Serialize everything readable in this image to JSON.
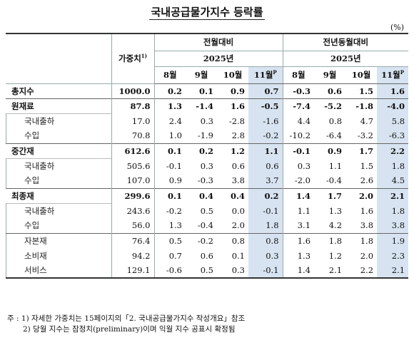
{
  "title": "국내공급물가지수 등락률",
  "unit": "(%)",
  "header": {
    "weight_label": "가중치",
    "weight_sup": "1)",
    "mom_label": "전월대비",
    "yoy_label": "전년동월대비",
    "year_label": "2025년",
    "months": [
      "8월",
      "9월",
      "10월",
      "11월"
    ],
    "prelim_sup": "P"
  },
  "rows": [
    {
      "name": "총지수",
      "weight": "1000.0",
      "mom": [
        "0.2",
        "0.1",
        "0.9",
        "0.7"
      ],
      "yoy": [
        "-0.3",
        "0.6",
        "1.5",
        "1.6"
      ]
    },
    {
      "name": "원재료",
      "weight": "87.8",
      "mom": [
        "1.3",
        "-1.4",
        "1.6",
        "-0.5"
      ],
      "yoy": [
        "-7.4",
        "-5.2",
        "-1.8",
        "-4.0"
      ]
    },
    {
      "name": "국내출하",
      "weight": "17.0",
      "mom": [
        "2.4",
        "0.3",
        "-2.8",
        "-1.6"
      ],
      "yoy": [
        "4.4",
        "0.8",
        "4.7",
        "5.8"
      ]
    },
    {
      "name": "수입",
      "weight": "70.8",
      "mom": [
        "1.0",
        "-1.9",
        "2.8",
        "-0.2"
      ],
      "yoy": [
        "-10.2",
        "-6.4",
        "-3.2",
        "-6.3"
      ]
    },
    {
      "name": "중간재",
      "weight": "612.6",
      "mom": [
        "0.1",
        "0.2",
        "1.2",
        "1.1"
      ],
      "yoy": [
        "-0.1",
        "0.9",
        "1.7",
        "2.2"
      ]
    },
    {
      "name": "국내출하",
      "weight": "505.6",
      "mom": [
        "-0.1",
        "0.3",
        "0.6",
        "0.6"
      ],
      "yoy": [
        "0.3",
        "1.1",
        "1.5",
        "1.8"
      ]
    },
    {
      "name": "수입",
      "weight": "107.0",
      "mom": [
        "0.9",
        "-0.3",
        "3.8",
        "3.7"
      ],
      "yoy": [
        "-2.0",
        "-0.4",
        "2.6",
        "4.5"
      ]
    },
    {
      "name": "최종재",
      "weight": "299.6",
      "mom": [
        "0.1",
        "0.4",
        "0.4",
        "0.2"
      ],
      "yoy": [
        "1.4",
        "1.7",
        "2.0",
        "2.1"
      ]
    },
    {
      "name": "국내출하",
      "weight": "243.6",
      "mom": [
        "-0.2",
        "0.5",
        "0.0",
        "-0.1"
      ],
      "yoy": [
        "1.1",
        "1.3",
        "1.6",
        "1.8"
      ]
    },
    {
      "name": "수입",
      "weight": "56.0",
      "mom": [
        "1.3",
        "-0.4",
        "2.0",
        "1.8"
      ],
      "yoy": [
        "3.1",
        "4.2",
        "3.8",
        "3.8"
      ]
    },
    {
      "name": "자본재",
      "weight": "76.4",
      "mom": [
        "0.5",
        "-0.2",
        "0.8",
        "0.8"
      ],
      "yoy": [
        "1.6",
        "1.8",
        "1.8",
        "1.9"
      ]
    },
    {
      "name": "소비재",
      "weight": "94.2",
      "mom": [
        "0.7",
        "0.6",
        "0.1",
        "0.3"
      ],
      "yoy": [
        "1.3",
        "1.2",
        "2.0",
        "2.3"
      ]
    },
    {
      "name": "서비스",
      "weight": "129.1",
      "mom": [
        "-0.6",
        "0.5",
        "0.3",
        "-0.1"
      ],
      "yoy": [
        "1.4",
        "2.1",
        "2.2",
        "2.1"
      ]
    }
  ],
  "notes": {
    "prefix": "주 :",
    "note1": "1) 자세한 가중치는 15페이지의「2. 국내공급물가지수 작성개요」참조",
    "note2": "2) 당월 지수는 잠정치(preliminary)이며 익월 지수 공표시 확정됨"
  }
}
